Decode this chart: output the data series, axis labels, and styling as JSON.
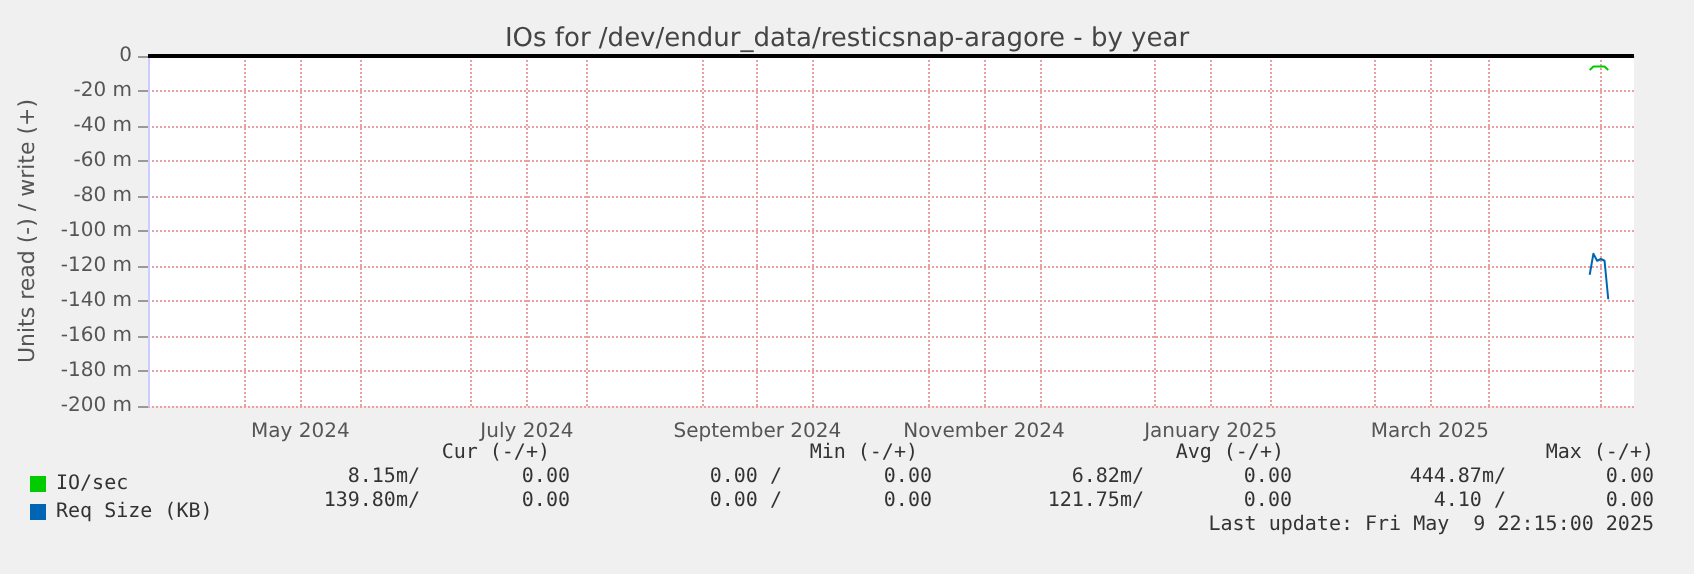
{
  "chart_data": {
    "type": "line",
    "title": "IOs for /dev/endur_data/resticsnap-aragore - by year",
    "ylabel": "Units read (-) / write (+)",
    "xlim": [
      "2024-04-05",
      "2025-05-09T22:15"
    ],
    "xticks": [
      {
        "value": "2024-05-01",
        "label": null
      },
      {
        "value": "2024-05-16",
        "label": "May 2024"
      },
      {
        "value": "2024-06-01",
        "label": null
      },
      {
        "value": "2024-07-01",
        "label": null
      },
      {
        "value": "2024-07-16",
        "label": "July 2024"
      },
      {
        "value": "2024-08-01",
        "label": null
      },
      {
        "value": "2024-09-01",
        "label": null
      },
      {
        "value": "2024-09-16",
        "label": "September 2024"
      },
      {
        "value": "2024-10-01",
        "label": null
      },
      {
        "value": "2024-11-01",
        "label": null
      },
      {
        "value": "2024-11-16",
        "label": "November 2024"
      },
      {
        "value": "2024-12-01",
        "label": null
      },
      {
        "value": "2025-01-01",
        "label": null
      },
      {
        "value": "2025-01-16",
        "label": "January 2025"
      },
      {
        "value": "2025-02-01",
        "label": null
      },
      {
        "value": "2025-03-01",
        "label": null
      },
      {
        "value": "2025-03-16",
        "label": "March 2025"
      },
      {
        "value": "2025-04-01",
        "label": null
      },
      {
        "value": "2025-05-01",
        "label": null
      }
    ],
    "ylim": [
      -200,
      0
    ],
    "yticks": [
      {
        "value": -200,
        "label": "-200 m"
      },
      {
        "value": -180,
        "label": "-180 m"
      },
      {
        "value": -160,
        "label": "-160 m"
      },
      {
        "value": -140,
        "label": "-140 m"
      },
      {
        "value": -120,
        "label": "-120 m"
      },
      {
        "value": -100,
        "label": "-100 m"
      },
      {
        "value": -80,
        "label": "-80 m"
      },
      {
        "value": -60,
        "label": "-60 m"
      },
      {
        "value": -40,
        "label": "-40 m"
      },
      {
        "value": -20,
        "label": "-20 m"
      },
      0
    ],
    "grid": true,
    "legend": "bottom",
    "marker": "none",
    "line_style": "solid",
    "ref_lines": [
      {
        "axis": "y",
        "value": 0,
        "color": "#000000"
      }
    ],
    "series": [
      {
        "name": "IO/sec",
        "color": "#00cc00",
        "x": [
          "2025-04-28",
          "2025-04-29",
          "2025-05-02",
          "2025-05-03"
        ],
        "values": [
          -8,
          -6,
          -6,
          -8
        ]
      },
      {
        "name": "Req Size (KB)",
        "color": "#0066b3",
        "x": [
          "2025-04-28",
          "2025-04-29",
          "2025-04-30",
          "2025-05-01",
          "2025-05-02",
          "2025-05-03"
        ],
        "values": [
          -125,
          -113,
          -117,
          -116,
          -117,
          -139
        ]
      }
    ],
    "annotations": [
      "Cur (-/+)",
      "Min (-/+)",
      "Avg (-/+)",
      "Max (-/+)",
      "8.15m/",
      "0.00",
      "0.00 /",
      "0.00",
      "6.82m/",
      "0.00",
      "444.87m/",
      "0.00",
      "139.80m/",
      "0.00",
      "0.00 /",
      "0.00",
      "121.75m/",
      "0.00",
      "4.10 /",
      "0.00",
      "Last update: Fri May  9 22:15:00 2025"
    ]
  }
}
